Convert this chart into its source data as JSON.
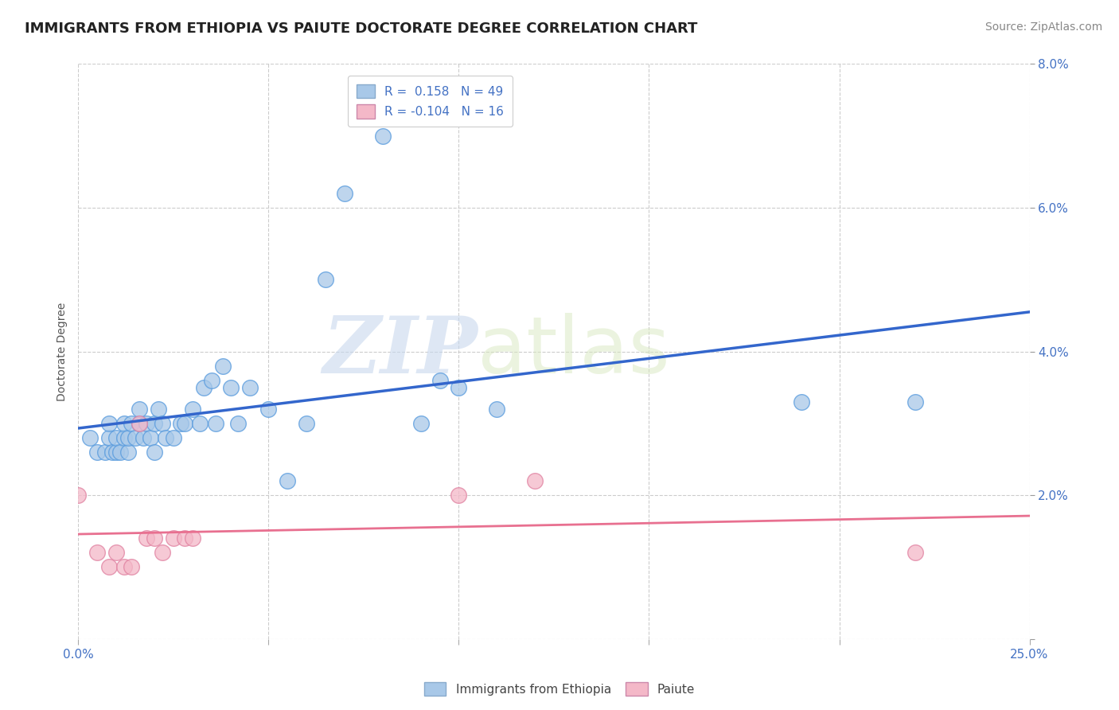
{
  "title": "IMMIGRANTS FROM ETHIOPIA VS PAIUTE DOCTORATE DEGREE CORRELATION CHART",
  "source": "Source: ZipAtlas.com",
  "ylabel": "Doctorate Degree",
  "xlim": [
    0.0,
    0.25
  ],
  "ylim": [
    0.0,
    0.08
  ],
  "xticks": [
    0.0,
    0.05,
    0.1,
    0.15,
    0.2,
    0.25
  ],
  "yticks": [
    0.0,
    0.02,
    0.04,
    0.06,
    0.08
  ],
  "xtick_labels": [
    "0.0%",
    "",
    "",
    "",
    "",
    "25.0%"
  ],
  "ytick_labels": [
    "",
    "2.0%",
    "4.0%",
    "6.0%",
    "8.0%"
  ],
  "blue_color": "#a8c8e8",
  "pink_color": "#f4b8c8",
  "blue_line_color": "#3366cc",
  "pink_line_color": "#e87090",
  "legend_r1": "R =  0.158",
  "legend_n1": "N = 49",
  "legend_r2": "R = -0.104",
  "legend_n2": "N = 16",
  "ethiopia_x": [
    0.003,
    0.005,
    0.007,
    0.008,
    0.008,
    0.009,
    0.01,
    0.01,
    0.011,
    0.012,
    0.012,
    0.013,
    0.013,
    0.014,
    0.015,
    0.016,
    0.016,
    0.017,
    0.018,
    0.019,
    0.02,
    0.02,
    0.021,
    0.022,
    0.023,
    0.025,
    0.027,
    0.028,
    0.03,
    0.032,
    0.033,
    0.035,
    0.036,
    0.038,
    0.04,
    0.042,
    0.045,
    0.05,
    0.055,
    0.06,
    0.065,
    0.07,
    0.08,
    0.09,
    0.095,
    0.1,
    0.11,
    0.19,
    0.22
  ],
  "ethiopia_y": [
    0.028,
    0.026,
    0.026,
    0.028,
    0.03,
    0.026,
    0.026,
    0.028,
    0.026,
    0.028,
    0.03,
    0.026,
    0.028,
    0.03,
    0.028,
    0.03,
    0.032,
    0.028,
    0.03,
    0.028,
    0.026,
    0.03,
    0.032,
    0.03,
    0.028,
    0.028,
    0.03,
    0.03,
    0.032,
    0.03,
    0.035,
    0.036,
    0.03,
    0.038,
    0.035,
    0.03,
    0.035,
    0.032,
    0.022,
    0.03,
    0.05,
    0.062,
    0.07,
    0.03,
    0.036,
    0.035,
    0.032,
    0.033,
    0.033
  ],
  "paiute_x": [
    0.0,
    0.005,
    0.008,
    0.01,
    0.012,
    0.014,
    0.016,
    0.018,
    0.02,
    0.022,
    0.025,
    0.028,
    0.03,
    0.1,
    0.12,
    0.22
  ],
  "paiute_y": [
    0.02,
    0.012,
    0.01,
    0.012,
    0.01,
    0.01,
    0.03,
    0.014,
    0.014,
    0.012,
    0.014,
    0.014,
    0.014,
    0.02,
    0.022,
    0.012
  ],
  "background_color": "#ffffff",
  "watermark_zip": "ZIP",
  "watermark_atlas": "atlas",
  "title_fontsize": 13,
  "axis_label_fontsize": 10,
  "tick_fontsize": 11,
  "legend_fontsize": 11,
  "source_fontsize": 10
}
